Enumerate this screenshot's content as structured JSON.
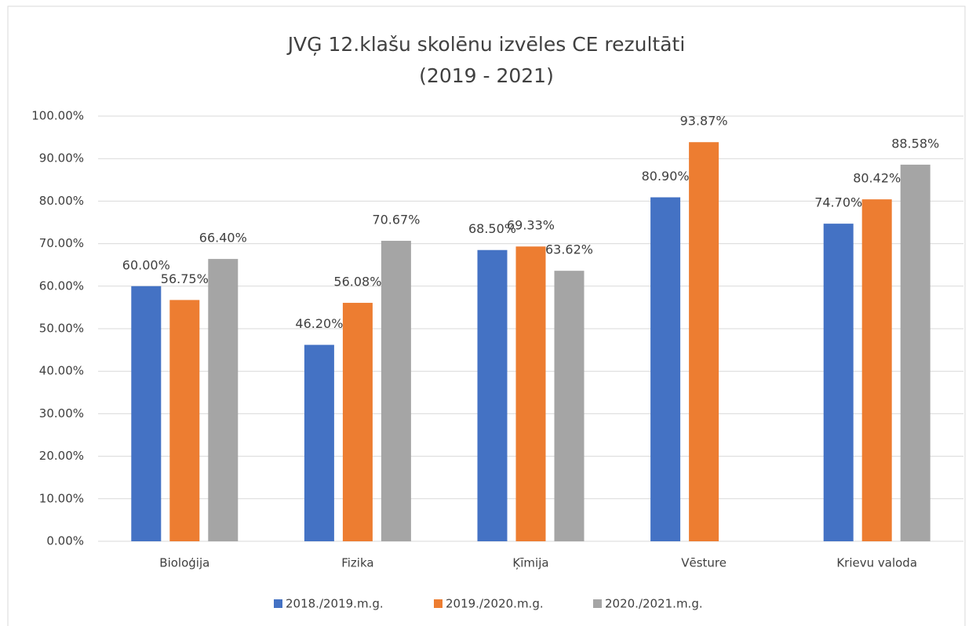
{
  "chart_data": {
    "type": "bar",
    "title": [
      "JVĢ 12.klašu skolēnu izvēles CE rezultāti",
      "(2019 - 2021)"
    ],
    "categories": [
      "Bioloģija",
      "Fizika",
      "Ķīmija",
      "Vēsture",
      "Krievu valoda"
    ],
    "series": [
      {
        "name": "2018./2019.m.g.",
        "color": "#4472c4",
        "values": [
          60,
          46.2,
          68.5,
          80.9,
          74.7
        ],
        "value_labels": [
          "60.00%",
          "46.20%",
          "68.50%",
          "80.90%",
          "74.70%"
        ]
      },
      {
        "name": "2019./2020.m.g.",
        "color": "#ed7d31",
        "values": [
          56.75,
          56.08,
          69.33,
          93.87,
          80.42
        ],
        "value_labels": [
          "56.75%",
          "56.08%",
          "69.33%",
          "93.87%",
          "80.42%"
        ]
      },
      {
        "name": "2020./2021.m.g.",
        "color": "#a5a5a5",
        "values": [
          66.4,
          70.67,
          63.62,
          null,
          88.58
        ],
        "value_labels": [
          "66.40%",
          "70.67%",
          "63.62%",
          null,
          "88.58%"
        ]
      }
    ],
    "ylim": [
      0,
      100
    ],
    "yticks": [
      {
        "value": 0,
        "label": "0.00%"
      },
      {
        "value": 10,
        "label": "10.00%"
      },
      {
        "value": 20,
        "label": "20.00%"
      },
      {
        "value": 30,
        "label": "30.00%"
      },
      {
        "value": 40,
        "label": "40.00%"
      },
      {
        "value": 50,
        "label": "50.00%"
      },
      {
        "value": 60,
        "label": "60.00%"
      },
      {
        "value": 70,
        "label": "70.00%"
      },
      {
        "value": 80,
        "label": "80.00%"
      },
      {
        "value": 90,
        "label": "90.00%"
      },
      {
        "value": 100,
        "label": "100.00%"
      }
    ],
    "grid": true,
    "legend": "bottom"
  }
}
